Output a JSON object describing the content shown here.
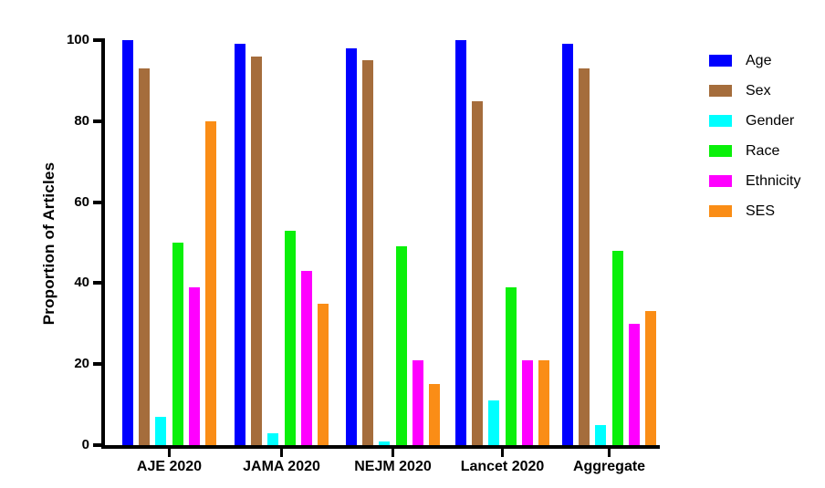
{
  "chart_data": {
    "type": "bar",
    "title": "",
    "xlabel": "",
    "ylabel": "Proportion of Articles",
    "ylim": [
      0,
      100
    ],
    "yticks": [
      0,
      20,
      40,
      60,
      80,
      100
    ],
    "grid": false,
    "legend_position": "right",
    "categories": [
      "AJE 2020",
      "JAMA 2020",
      "NEJM 2020",
      "Lancet 2020",
      "Aggregate"
    ],
    "series": [
      {
        "name": "Age",
        "color": "#0000FF",
        "values": [
          100,
          99,
          98,
          100,
          99
        ]
      },
      {
        "name": "Sex",
        "color": "#A56D3C",
        "values": [
          93,
          96,
          95,
          85,
          93
        ]
      },
      {
        "name": "Gender",
        "color": "#00FFFF",
        "values": [
          7,
          3,
          1,
          11,
          5
        ]
      },
      {
        "name": "Race",
        "color": "#0AF00A",
        "values": [
          50,
          53,
          49,
          39,
          48
        ]
      },
      {
        "name": "Ethnicity",
        "color": "#FF00FF",
        "values": [
          39,
          43,
          21,
          21,
          30
        ]
      },
      {
        "name": "SES",
        "color": "#FA8D16",
        "values": [
          80,
          35,
          15,
          21,
          33
        ]
      }
    ]
  }
}
